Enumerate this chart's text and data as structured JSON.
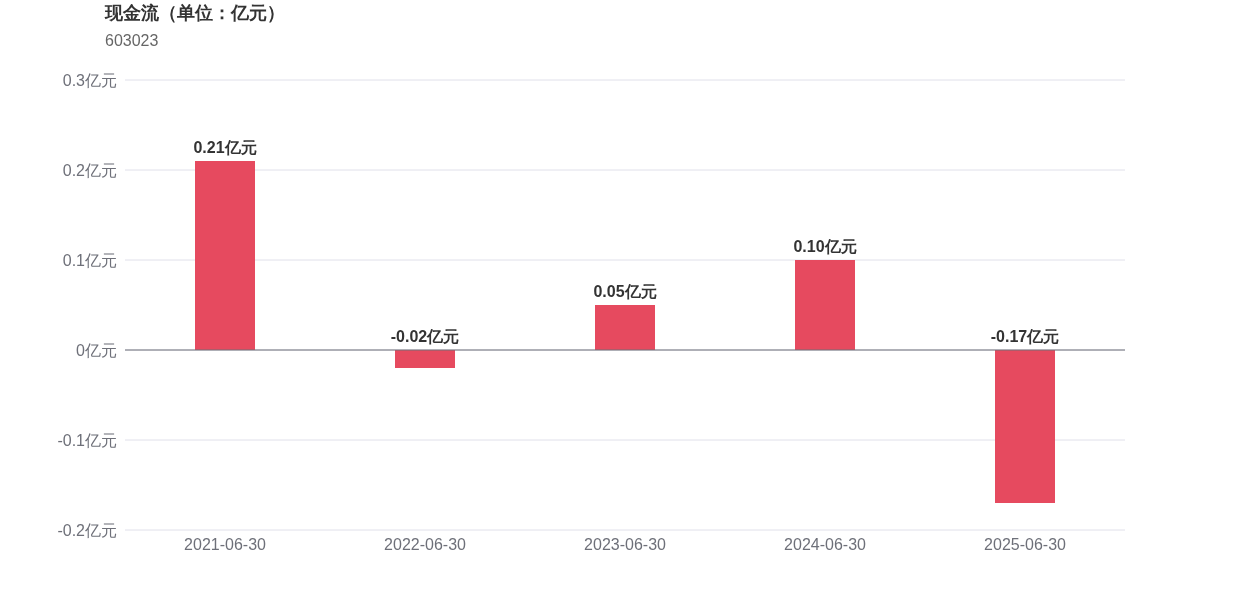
{
  "chart_data": {
    "type": "bar",
    "title": "现金流（单位：亿元）",
    "subtitle": "603023",
    "categories": [
      "2021-06-30",
      "2022-06-30",
      "2023-06-30",
      "2024-06-30",
      "2025-06-30"
    ],
    "values": [
      0.21,
      -0.02,
      0.05,
      0.1,
      -0.17
    ],
    "value_labels": [
      "0.21亿元",
      "-0.02亿元",
      "0.05亿元",
      "0.10亿元",
      "-0.17亿元"
    ],
    "color": "#e64a5f",
    "ylim": [
      -0.2,
      0.3
    ],
    "yticks": [
      {
        "value": -0.2,
        "label": "-0.2亿元"
      },
      {
        "value": -0.1,
        "label": "-0.1亿元"
      },
      {
        "value": 0,
        "label": "0亿元"
      },
      {
        "value": 0.1,
        "label": "0.1亿元"
      },
      {
        "value": 0.2,
        "label": "0.2亿元"
      },
      {
        "value": 0.3,
        "label": "0.3亿元"
      }
    ],
    "grid": "y"
  }
}
